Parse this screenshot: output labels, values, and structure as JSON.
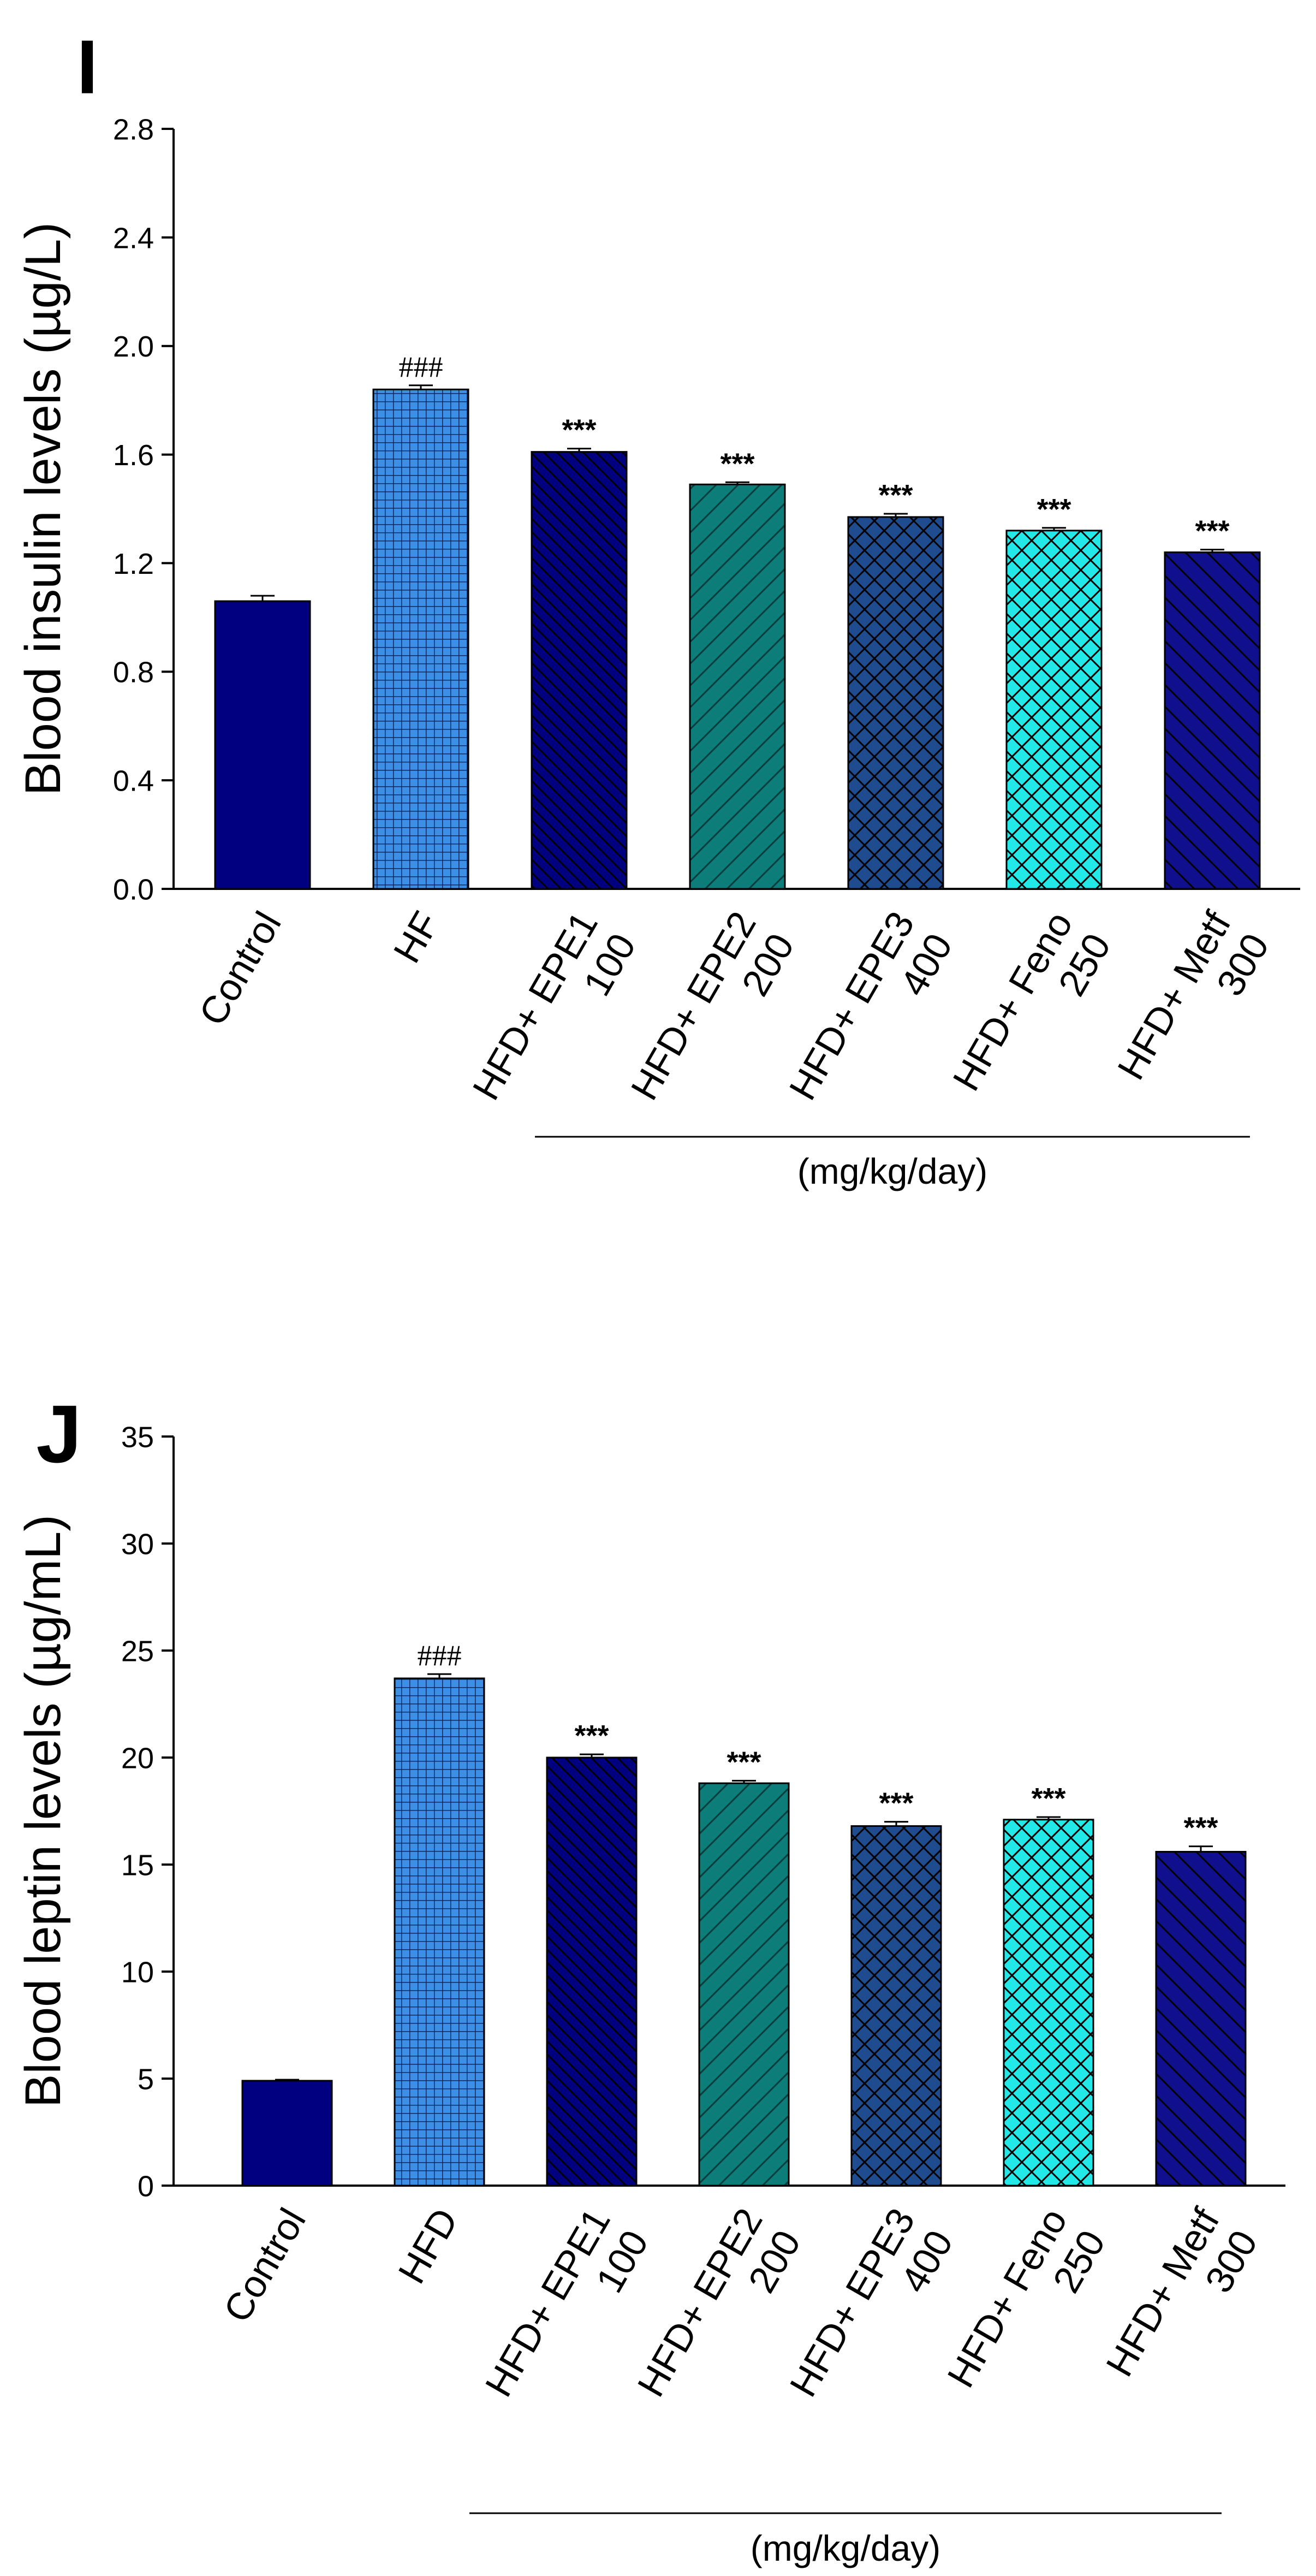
{
  "chart_data": [
    {
      "panel_label": "I",
      "type": "bar",
      "title": "",
      "ylabel": "Blood insulin levels (µg/L)",
      "xlabel": "(mg/kg/day)",
      "ylim": [
        0,
        2.8
      ],
      "yticks": [
        "0.0",
        "0.4",
        "0.8",
        "1.2",
        "1.6",
        "2.0",
        "2.4",
        "2.8"
      ],
      "grid": false,
      "categories": [
        {
          "line1": "Control",
          "line2": ""
        },
        {
          "line1": "HF",
          "line2": ""
        },
        {
          "line1": "HFD+ EPE1",
          "line2": "100"
        },
        {
          "line1": "HFD+ EPE2",
          "line2": "200"
        },
        {
          "line1": "HFD+ EPE3",
          "line2": "400"
        },
        {
          "line1": "HFD+ Feno",
          "line2": "250"
        },
        {
          "line1": "HFD+ Metf",
          "line2": "300"
        }
      ],
      "values": [
        1.06,
        1.84,
        1.61,
        1.49,
        1.37,
        1.32,
        1.24
      ],
      "errors": [
        0.02,
        0.015,
        0.012,
        0.008,
        0.012,
        0.01,
        0.01
      ],
      "annotations": [
        "",
        "###",
        "***",
        "***",
        "***",
        "***",
        "***"
      ],
      "bar_colors": [
        "#000080",
        "#3d8fe6",
        "#000080",
        "#0d7d7a",
        "#1f4b8f",
        "#22e8e8",
        "#10108e"
      ],
      "bar_patterns": [
        "solid",
        "grid",
        "diag-back",
        "diag-forward",
        "crosshatch",
        "crosshatch",
        "diag-back"
      ]
    },
    {
      "panel_label": "J",
      "type": "bar",
      "title": "",
      "ylabel": "Blood leptin levels (µg/mL)",
      "xlabel": "(mg/kg/day)",
      "ylim": [
        0,
        35
      ],
      "yticks": [
        "0",
        "5",
        "10",
        "15",
        "20",
        "25",
        "30",
        "35"
      ],
      "grid": false,
      "categories": [
        {
          "line1": "Control",
          "line2": ""
        },
        {
          "line1": "HFD",
          "line2": ""
        },
        {
          "line1": "HFD+ EPE1",
          "line2": "100"
        },
        {
          "line1": "HFD+ EPE2",
          "line2": "200"
        },
        {
          "line1": "HFD+ EPE3",
          "line2": "400"
        },
        {
          "line1": "HFD+ Feno",
          "line2": "250"
        },
        {
          "line1": "HFD+ Metf",
          "line2": "300"
        }
      ],
      "values": [
        4.9,
        23.7,
        20.0,
        18.8,
        16.8,
        17.1,
        15.6
      ],
      "errors": [
        0.05,
        0.2,
        0.15,
        0.12,
        0.2,
        0.12,
        0.25
      ],
      "annotations": [
        "",
        "###",
        "***",
        "***",
        "***",
        "***",
        "***"
      ],
      "bar_colors": [
        "#000080",
        "#3d8fe6",
        "#000080",
        "#0d7d7a",
        "#1f4b8f",
        "#22e8e8",
        "#10108e"
      ],
      "bar_patterns": [
        "solid",
        "grid",
        "diag-back",
        "diag-forward",
        "crosshatch",
        "crosshatch",
        "diag-back"
      ]
    }
  ]
}
